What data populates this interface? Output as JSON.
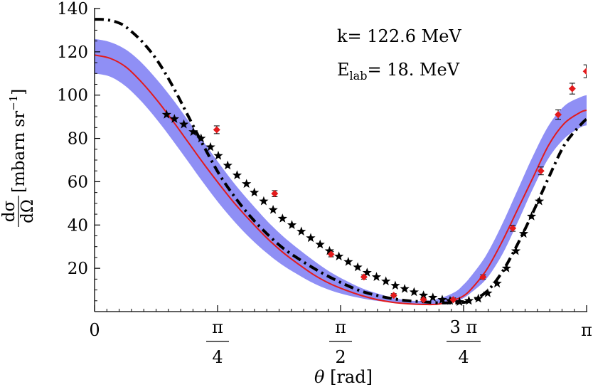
{
  "chart_data": {
    "type": "scatter",
    "title": "",
    "xlabel": "θ [rad]",
    "ylabel": "dσ/dΩ [mbarn sr⁻¹]",
    "ylabel_numerator": "dσ",
    "ylabel_denominator": "dΩ",
    "ylabel_unit": "[mbarn sr",
    "ylabel_unit_sup": "−1",
    "ylabel_unit_close": "]",
    "xlim": [
      0,
      3.14159
    ],
    "ylim": [
      0,
      140
    ],
    "x_ticks": [
      {
        "value": 0,
        "label": "0",
        "kind": "plain"
      },
      {
        "value": 0.7854,
        "num": "π",
        "den": "4",
        "kind": "fraction"
      },
      {
        "value": 1.5708,
        "num": "π",
        "den": "2",
        "kind": "fraction"
      },
      {
        "value": 2.3562,
        "num": "3 π",
        "den": "4",
        "kind": "fraction"
      },
      {
        "value": 3.14159,
        "label": "π",
        "kind": "plain"
      }
    ],
    "y_ticks": [
      {
        "value": 20,
        "label": "20"
      },
      {
        "value": 40,
        "label": "40"
      },
      {
        "value": 60,
        "label": "60"
      },
      {
        "value": 80,
        "label": "80"
      },
      {
        "value": 100,
        "label": "100"
      },
      {
        "value": 120,
        "label": "120"
      },
      {
        "value": 140,
        "label": "140"
      }
    ],
    "annotations": {
      "k_text": "k= 122.6 MeV",
      "elab_prefix": "E",
      "elab_sub": "lab",
      "elab_value": "= 18. MeV"
    },
    "colors": {
      "band": "#8f8ff5",
      "central": "#e31a1c",
      "dashdot": "#000000",
      "stars": "#000000",
      "diamonds": "#e31a1c"
    },
    "series": [
      {
        "name": "uncertainty band",
        "kind": "band",
        "x": [
          0,
          0.1,
          0.2,
          0.3,
          0.4,
          0.5,
          0.6,
          0.7,
          0.8,
          0.9,
          1.0,
          1.1,
          1.2,
          1.3,
          1.4,
          1.5,
          1.6,
          1.7,
          1.8,
          1.9,
          2.0,
          2.1,
          2.2,
          2.3,
          2.35,
          2.4,
          2.5,
          2.6,
          2.7,
          2.8,
          2.9,
          3.0,
          3.1,
          3.14159
        ],
        "lower": [
          110,
          108.5,
          104,
          97,
          88.5,
          79,
          69,
          59,
          49.5,
          41,
          33.5,
          27,
          21.5,
          17,
          13,
          10,
          7.8,
          6.2,
          5,
          4.2,
          3.7,
          3.5,
          3.6,
          4.5,
          6,
          8.5,
          15,
          26,
          41,
          57,
          71,
          80,
          85,
          86
        ],
        "upper": [
          126,
          124.5,
          121,
          115,
          107,
          98,
          88,
          78,
          68,
          58.5,
          50,
          42,
          35,
          29,
          23.5,
          18.5,
          14.5,
          11,
          8.5,
          6.5,
          5.2,
          5,
          6,
          9,
          12,
          16,
          26,
          40,
          56,
          72,
          86,
          95,
          99,
          100
        ]
      },
      {
        "name": "central curve",
        "kind": "line",
        "style": "solid",
        "x": [
          0,
          0.1,
          0.2,
          0.3,
          0.4,
          0.5,
          0.6,
          0.7,
          0.8,
          0.9,
          1.0,
          1.1,
          1.2,
          1.3,
          1.4,
          1.5,
          1.6,
          1.7,
          1.8,
          1.9,
          2.0,
          2.1,
          2.2,
          2.3,
          2.35,
          2.4,
          2.5,
          2.6,
          2.7,
          2.8,
          2.9,
          3.0,
          3.1,
          3.14159
        ],
        "y": [
          118.5,
          117,
          113,
          106,
          97.5,
          88,
          78,
          68,
          58.5,
          49.5,
          41.5,
          34,
          27.5,
          22,
          17,
          13,
          10,
          7.5,
          5.6,
          4.3,
          3.6,
          3.3,
          3.5,
          5.5,
          7,
          10,
          19,
          32,
          47,
          62,
          77,
          87,
          92,
          93
        ]
      },
      {
        "name": "dash-dot curve",
        "kind": "line",
        "style": "dashdot",
        "x": [
          0,
          0.05,
          0.1,
          0.15,
          0.2,
          0.3,
          0.4,
          0.5,
          0.6,
          0.7,
          0.8,
          0.9,
          1.0,
          1.1,
          1.2,
          1.3,
          1.4,
          1.5,
          1.6,
          1.7,
          1.8,
          1.9,
          2.0,
          2.1,
          2.2,
          2.25,
          2.3,
          2.35,
          2.4,
          2.5,
          2.6,
          2.7,
          2.8,
          2.9,
          3.0,
          3.1,
          3.14159
        ],
        "y": [
          135,
          135,
          134.5,
          133.5,
          131.5,
          125,
          116,
          104,
          90,
          76,
          63,
          52.5,
          43.5,
          36,
          29.5,
          24.5,
          20,
          16,
          12.5,
          9.5,
          7.5,
          6,
          5,
          4.5,
          4,
          4,
          4,
          4.2,
          5,
          9,
          18,
          31,
          46,
          62,
          77,
          86,
          89
        ]
      },
      {
        "name": "stars",
        "kind": "points",
        "marker": "star",
        "x": [
          0.46,
          0.51,
          0.57,
          0.63,
          0.68,
          0.74,
          0.79,
          0.85,
          0.91,
          0.97,
          1.02,
          1.08,
          1.14,
          1.2,
          1.26,
          1.32,
          1.38,
          1.44,
          1.5,
          1.56,
          1.62,
          1.68,
          1.74,
          1.8,
          1.86,
          1.92,
          1.98,
          2.04,
          2.1,
          2.16,
          2.22,
          2.27,
          2.33,
          2.39,
          2.45,
          2.51,
          2.57,
          2.63,
          2.69,
          2.74,
          2.79,
          2.84
        ],
        "y": [
          91,
          89,
          86.5,
          83,
          80,
          76,
          72,
          67.5,
          63,
          59,
          55,
          51,
          47,
          43,
          40,
          37,
          34,
          31,
          28,
          25.5,
          23,
          20.5,
          18,
          16,
          14,
          12,
          10.5,
          9,
          7.5,
          6.5,
          5.5,
          5,
          4.5,
          5,
          6,
          8.5,
          13,
          20,
          28,
          36,
          44,
          51
        ]
      },
      {
        "name": "diamonds with error bars",
        "kind": "points",
        "marker": "diamond",
        "x": [
          0.78,
          1.15,
          1.51,
          1.72,
          1.91,
          2.1,
          2.29,
          2.48,
          2.67,
          2.85,
          2.96,
          3.05,
          3.14
        ],
        "y": [
          84,
          54.5,
          26.5,
          16,
          7.5,
          5.5,
          5.5,
          16,
          38.5,
          65,
          91,
          103,
          111
        ],
        "yerr": [
          1.8,
          1.4,
          1.2,
          1.0,
          0.8,
          0.8,
          0.8,
          1.0,
          1.4,
          1.8,
          2.2,
          2.5,
          3.0
        ]
      }
    ]
  }
}
